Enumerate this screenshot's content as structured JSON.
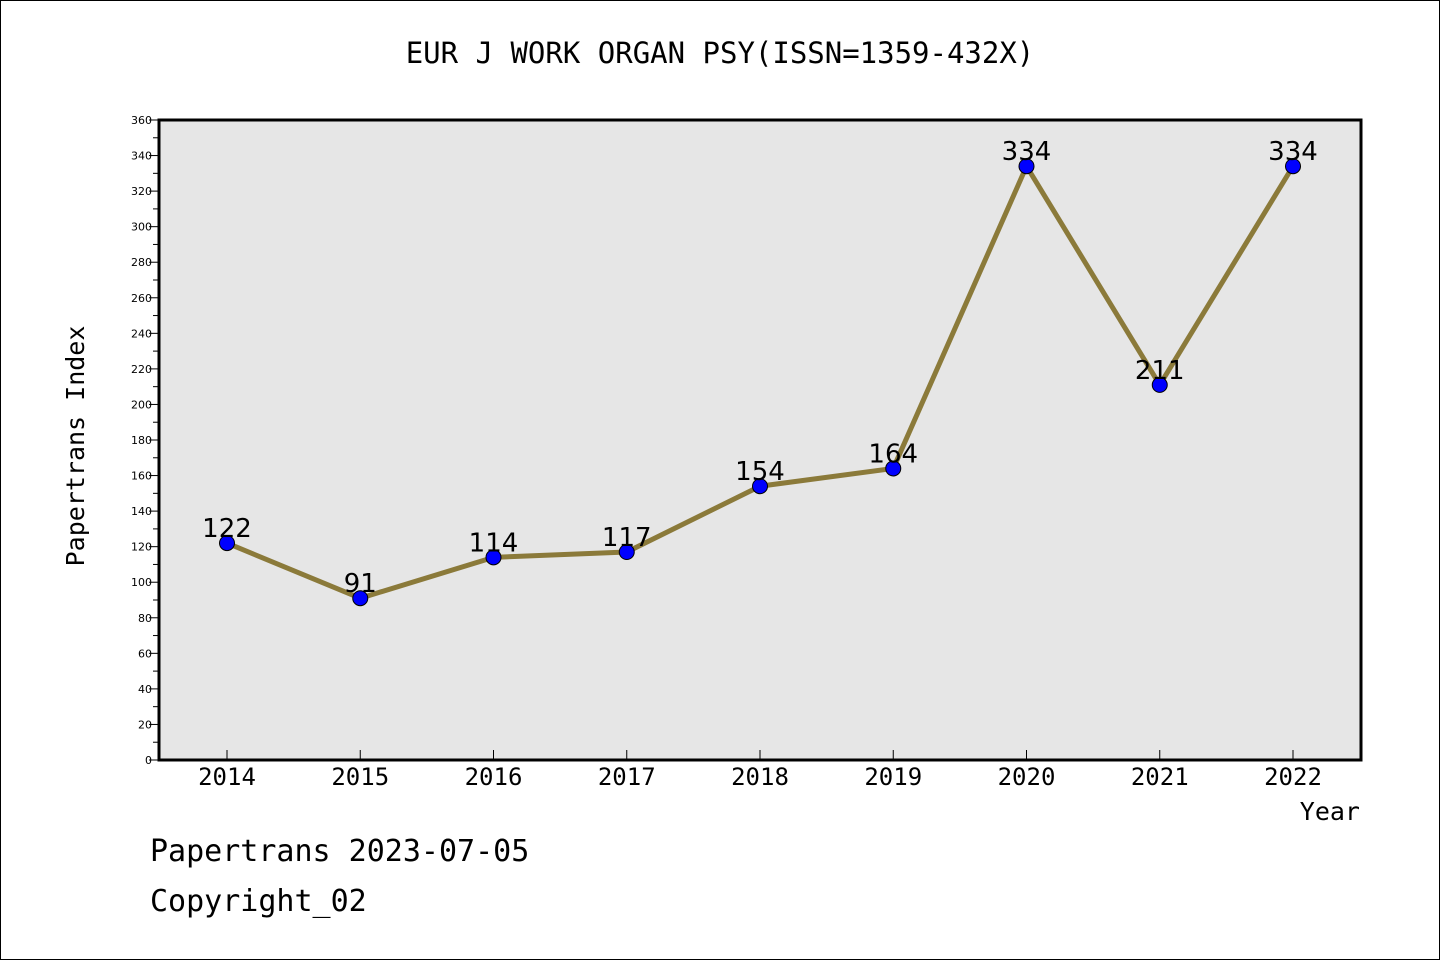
{
  "chart_data": {
    "type": "line",
    "title": "EUR J WORK ORGAN PSY(ISSN=1359-432X)",
    "xlabel": "Year",
    "ylabel": "Papertrans Index",
    "categories": [
      "2014",
      "2015",
      "2016",
      "2017",
      "2018",
      "2019",
      "2020",
      "2021",
      "2022"
    ],
    "values": [
      122,
      91,
      114,
      117,
      154,
      164,
      334,
      211,
      334
    ],
    "ylim": [
      0,
      360
    ],
    "ytick_step": 20,
    "yticks": [
      "0",
      "20",
      "40",
      "60",
      "80",
      "100",
      "120",
      "140",
      "160",
      "180",
      "200",
      "220",
      "240",
      "260",
      "280",
      "300",
      "320",
      "340",
      "360"
    ],
    "data_labels": [
      "122",
      "91",
      "114",
      "117",
      "154",
      "164",
      "334",
      "211",
      "334"
    ],
    "grid": false,
    "line_color": "#8b7a3a",
    "marker_color": "#0000ff",
    "plot_background": "#e6e6e6"
  },
  "footer": {
    "line1": "Papertrans 2023-07-05",
    "line2": "Copyright_02"
  }
}
